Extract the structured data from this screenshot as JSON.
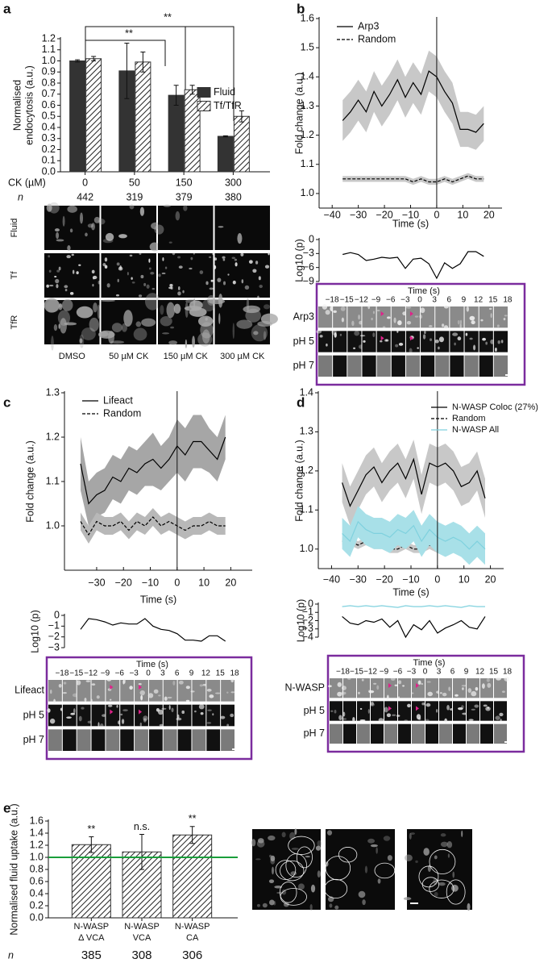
{
  "panel_labels": [
    "a",
    "b",
    "c",
    "d",
    "e"
  ],
  "chart_data": [
    {
      "type": "bar",
      "y_label": [
        "Normalised",
        "endocytosis (a.u.)"
      ],
      "x_label": "CK (µM)",
      "categories": [
        "0",
        "50",
        "150",
        "300"
      ],
      "n_label": "n",
      "n": [
        442,
        319,
        379,
        380
      ],
      "series": [
        {
          "name": "Fluid",
          "color": "#333333",
          "hatch": false,
          "values": [
            1.0,
            0.91,
            0.69,
            0.32
          ],
          "errors": [
            0.01,
            0.25,
            0.09,
            0.005
          ]
        },
        {
          "name": "Tf/TfR",
          "color": "#333333",
          "hatch": true,
          "values": [
            1.02,
            0.99,
            0.74,
            0.5
          ],
          "errors": [
            0.02,
            0.09,
            0.04,
            0.05
          ]
        }
      ],
      "ylim": [
        0,
        1.2
      ],
      "yticks": [
        {
          "value": 0,
          "label": "0.0"
        },
        0.1,
        0.2,
        0.3,
        0.4,
        0.5,
        0.6,
        0.7,
        0.8,
        0.9,
        {
          "value": 1,
          "label": "1.0"
        },
        1.1,
        1.2
      ],
      "annotations": [
        "**",
        "**"
      ],
      "legend": "center right"
    },
    {
      "type": "line",
      "y_label": "Fold change (a.u.)",
      "x_label": "Time (s)",
      "x": [
        -36,
        -33,
        -30,
        -27,
        -24,
        -21,
        -18,
        -15,
        -12,
        -9,
        -6,
        -3,
        0,
        3,
        6,
        9,
        12,
        15,
        18
      ],
      "xlim": [
        -45,
        25
      ],
      "xticks": [
        {
          "value": -40,
          "label": "−40"
        },
        {
          "value": -30,
          "label": "−30"
        },
        {
          "value": -20,
          "label": "−20"
        },
        {
          "value": -10,
          "label": "−10"
        },
        0,
        10,
        20
      ],
      "ylim": [
        0.95,
        1.6
      ],
      "yticks": [
        {
          "value": 1,
          "label": "1.0"
        },
        1.1,
        1.2,
        1.3,
        1.4,
        1.5,
        1.6
      ],
      "vline": 0,
      "legend": "upper left",
      "series": [
        {
          "name": "Arp3",
          "color": "#000000",
          "dash": false,
          "band_color": "#c8c8c8",
          "values": [
            1.25,
            1.28,
            1.32,
            1.28,
            1.35,
            1.3,
            1.34,
            1.39,
            1.33,
            1.38,
            1.34,
            1.42,
            1.4,
            1.35,
            1.31,
            1.22,
            1.22,
            1.21,
            1.24
          ],
          "band": [
            0.07,
            0.07,
            0.07,
            0.07,
            0.07,
            0.07,
            0.07,
            0.07,
            0.07,
            0.07,
            0.07,
            0.07,
            0.07,
            0.07,
            0.07,
            0.06,
            0.06,
            0.06,
            0.06
          ]
        },
        {
          "name": "Random",
          "color": "#000000",
          "dash": true,
          "band_color": "#c8c8c8",
          "values": [
            1.05,
            1.05,
            1.05,
            1.05,
            1.05,
            1.05,
            1.05,
            1.05,
            1.05,
            1.04,
            1.05,
            1.04,
            1.04,
            1.05,
            1.04,
            1.05,
            1.06,
            1.05,
            1.05
          ],
          "band": [
            0.01,
            0.01,
            0.01,
            0.01,
            0.01,
            0.01,
            0.01,
            0.01,
            0.01,
            0.01,
            0.01,
            0.01,
            0.01,
            0.01,
            0.01,
            0.01,
            0.01,
            0.01,
            0.01
          ]
        }
      ]
    },
    {
      "type": "line",
      "y_label": "Log10 (p)",
      "x": [
        -36,
        -33,
        -30,
        -27,
        -24,
        -21,
        -18,
        -15,
        -12,
        -9,
        -6,
        -3,
        0,
        3,
        6,
        9,
        12,
        15,
        18
      ],
      "xlim": [
        -45,
        25
      ],
      "ylim": [
        -9,
        0
      ],
      "yticks": [
        0,
        {
          "value": -3,
          "label": "−3"
        },
        {
          "value": -6,
          "label": "−6"
        },
        {
          "value": -9,
          "label": "−9"
        }
      ],
      "series": [
        {
          "color": "#000000",
          "values": [
            -3.2,
            -2.8,
            -3.2,
            -4.5,
            -4.2,
            -3.8,
            -4.0,
            -3.8,
            -6.2,
            -4.2,
            -4.0,
            -5.2,
            -8.3,
            -5.0,
            -6.2,
            -5.2,
            -2.6,
            -2.6,
            -3.6
          ]
        }
      ]
    },
    {
      "type": "line",
      "y_label": "Fold change (a.u.)",
      "x_label": "Time (s)",
      "x": [
        -36,
        -33,
        -30,
        -27,
        -24,
        -21,
        -18,
        -15,
        -12,
        -9,
        -6,
        -3,
        0,
        3,
        6,
        9,
        12,
        15,
        18
      ],
      "xlim": [
        -42,
        28
      ],
      "xticks": [
        {
          "value": -30,
          "label": "−30"
        },
        {
          "value": -20,
          "label": "−20"
        },
        {
          "value": -10,
          "label": "−10"
        },
        0,
        10,
        20
      ],
      "ylim": [
        0.9,
        1.3
      ],
      "yticks": [
        {
          "value": 1,
          "label": "1.0"
        },
        1.1,
        1.2,
        1.3
      ],
      "vline": 0,
      "legend": "upper left",
      "series": [
        {
          "name": "Lifeact",
          "color": "#000000",
          "dash": false,
          "band_color": "#a6a6a6",
          "values": [
            1.14,
            1.05,
            1.07,
            1.08,
            1.11,
            1.1,
            1.13,
            1.12,
            1.14,
            1.15,
            1.13,
            1.15,
            1.18,
            1.16,
            1.19,
            1.19,
            1.17,
            1.15,
            1.2
          ],
          "band": [
            0.06,
            0.05,
            0.05,
            0.05,
            0.05,
            0.05,
            0.05,
            0.05,
            0.05,
            0.06,
            0.05,
            0.05,
            0.06,
            0.06,
            0.06,
            0.06,
            0.05,
            0.05,
            0.05
          ]
        },
        {
          "name": "Random",
          "color": "#000000",
          "dash": true,
          "band_color": "#b8b8b8",
          "values": [
            1.01,
            0.98,
            1.01,
            1.0,
            1.0,
            1.01,
            0.99,
            1.01,
            1.0,
            1.02,
            1.0,
            1.01,
            1.0,
            0.99,
            1.0,
            1.0,
            1.01,
            1.0,
            1.0
          ],
          "band": [
            0.02,
            0.02,
            0.02,
            0.02,
            0.02,
            0.02,
            0.02,
            0.02,
            0.02,
            0.02,
            0.02,
            0.02,
            0.02,
            0.02,
            0.02,
            0.02,
            0.02,
            0.02,
            0.02
          ]
        }
      ]
    },
    {
      "type": "line",
      "y_label": "Log10 (p)",
      "x": [
        -36,
        -33,
        -30,
        -27,
        -24,
        -21,
        -18,
        -15,
        -12,
        -9,
        -6,
        -3,
        0,
        3,
        6,
        9,
        12,
        15,
        18
      ],
      "xlim": [
        -42,
        28
      ],
      "ylim": [
        -3,
        0
      ],
      "yticks": [
        0,
        {
          "value": -1,
          "label": "−1"
        },
        {
          "value": -2,
          "label": "−2"
        },
        {
          "value": -3,
          "label": "−3"
        }
      ],
      "series": [
        {
          "color": "#000000",
          "values": [
            -1.3,
            -0.3,
            -0.4,
            -0.6,
            -0.9,
            -0.7,
            -0.8,
            -0.8,
            -0.3,
            -1.0,
            -1.3,
            -1.4,
            -1.7,
            -2.3,
            -2.3,
            -2.4,
            -1.9,
            -1.9,
            -2.4
          ]
        }
      ]
    },
    {
      "type": "line",
      "y_label": "Fold change (a.u.)",
      "x_label": "Time (s)",
      "x": [
        -36,
        -33,
        -30,
        -27,
        -24,
        -21,
        -18,
        -15,
        -12,
        -9,
        -6,
        -3,
        0,
        3,
        6,
        9,
        12,
        15,
        18
      ],
      "xlim": [
        -45,
        25
      ],
      "xticks": [
        {
          "value": -40,
          "label": "−40"
        },
        {
          "value": -30,
          "label": "−30"
        },
        {
          "value": -20,
          "label": "−20"
        },
        {
          "value": -10,
          "label": "−10"
        },
        0,
        10,
        20
      ],
      "ylim": [
        0.95,
        1.4
      ],
      "yticks": [
        {
          "value": 1,
          "label": "1.0"
        },
        1.1,
        1.2,
        1.3,
        1.4
      ],
      "vline": 0,
      "legend": "upper right",
      "series": [
        {
          "name": "N-WASP Coloc (27%)",
          "color": "#000000",
          "dash": false,
          "band_color": "#c8c8c8",
          "values": [
            1.17,
            1.11,
            1.15,
            1.19,
            1.21,
            1.17,
            1.2,
            1.22,
            1.18,
            1.23,
            1.14,
            1.22,
            1.21,
            1.22,
            1.2,
            1.16,
            1.17,
            1.2,
            1.13
          ],
          "band": [
            0.05,
            0.05,
            0.05,
            0.05,
            0.05,
            0.05,
            0.05,
            0.05,
            0.05,
            0.05,
            0.05,
            0.05,
            0.05,
            0.05,
            0.05,
            0.05,
            0.05,
            0.05,
            0.05
          ]
        },
        {
          "name": "Random",
          "color": "#000000",
          "dash": true,
          "band_color": "#c8c8c8",
          "values": [
            1.02,
            1.02,
            1.01,
            1.02,
            1.01,
            1.01,
            1.0,
            1.0,
            1.01,
            1.0,
            1.0,
            1.01,
            1.0,
            1.0,
            1.01,
            1.0,
            1.01,
            1.0,
            1.0
          ],
          "band": [
            0.01,
            0.01,
            0.01,
            0.01,
            0.01,
            0.01,
            0.01,
            0.01,
            0.01,
            0.01,
            0.01,
            0.01,
            0.01,
            0.01,
            0.01,
            0.01,
            0.01,
            0.01,
            0.01
          ]
        },
        {
          "name": "N-WASP All",
          "color": "#7fd1de",
          "dash": false,
          "band_color": "#a8e0e8",
          "values": [
            1.04,
            1.02,
            1.07,
            1.05,
            1.04,
            1.04,
            1.03,
            1.05,
            1.04,
            1.06,
            1.02,
            1.05,
            1.03,
            1.02,
            1.03,
            1.02,
            1.0,
            1.02,
            1.0
          ],
          "band": [
            0.04,
            0.04,
            0.04,
            0.04,
            0.04,
            0.04,
            0.04,
            0.04,
            0.04,
            0.04,
            0.04,
            0.04,
            0.04,
            0.04,
            0.04,
            0.04,
            0.04,
            0.04,
            0.04
          ]
        }
      ]
    },
    {
      "type": "line",
      "y_label": "Log10 (p)",
      "x": [
        -36,
        -33,
        -30,
        -27,
        -24,
        -21,
        -18,
        -15,
        -12,
        -9,
        -6,
        -3,
        0,
        3,
        6,
        9,
        12,
        15,
        18
      ],
      "xlim": [
        -45,
        25
      ],
      "ylim": [
        -4,
        0
      ],
      "yticks": [
        0,
        {
          "value": -1,
          "label": "−1"
        },
        {
          "value": -2,
          "label": "−2"
        },
        {
          "value": -3,
          "label": "−3"
        },
        {
          "value": -4,
          "label": "−4"
        }
      ],
      "series": [
        {
          "color": "#7fd1de",
          "values": [
            -0.3,
            -0.2,
            -0.3,
            -0.2,
            -0.3,
            -0.2,
            -0.3,
            -0.4,
            -0.2,
            -0.3,
            -0.3,
            -0.2,
            -0.3,
            -0.2,
            -0.3,
            -0.4,
            -0.2,
            -0.3,
            -0.3
          ]
        },
        {
          "color": "#000000",
          "values": [
            -1.5,
            -2.3,
            -2.5,
            -2.0,
            -2.2,
            -1.8,
            -2.8,
            -2.0,
            -4.0,
            -2.5,
            -3.1,
            -2.0,
            -3.5,
            -2.9,
            -2.5,
            -2.0,
            -2.8,
            -3.0,
            -1.5
          ]
        }
      ]
    },
    {
      "type": "bar",
      "y_label": "Normalised fluid uptake (a.u.)",
      "categories": [
        [
          "N-WASP",
          "Δ VCA"
        ],
        [
          "N-WASP",
          "VCA"
        ],
        [
          "N-WASP",
          "CA"
        ]
      ],
      "n_label": "n",
      "n": [
        385,
        308,
        306
      ],
      "series": [
        {
          "color": "#333333",
          "hatch": true,
          "values": [
            1.21,
            1.09,
            1.37
          ],
          "errors": [
            0.13,
            0.29,
            0.14
          ]
        }
      ],
      "ylim": [
        0,
        1.6
      ],
      "yticks": [
        {
          "value": 0,
          "label": "0.0"
        },
        0.2,
        0.4,
        0.6,
        0.8,
        {
          "value": 1,
          "label": "1.0"
        },
        1.2,
        1.4,
        1.6
      ],
      "reference_line": {
        "value": 1,
        "color": "#1a9e3b"
      },
      "annotations": [
        "**",
        "n.s.",
        "**"
      ]
    }
  ],
  "micrographs": {
    "row_labels": [
      "Fluid",
      "Tf",
      "TfR"
    ],
    "column_labels": [
      "DMSO",
      "50 µM CK",
      "150 µM CK",
      "300 µM CK"
    ]
  },
  "strips": [
    {
      "title": "Time (s)",
      "times": [
        "−18",
        "−15",
        "−12",
        "−9",
        "−6",
        "−3",
        "0",
        "3",
        "6",
        "9",
        "12",
        "15",
        "18"
      ],
      "rows": [
        "Arp3",
        "pH 5",
        "pH 7"
      ]
    },
    {
      "title": "Time (s)",
      "times": [
        "−18",
        "−15",
        "−12",
        "−9",
        "−6",
        "−3",
        "0",
        "3",
        "6",
        "9",
        "12",
        "15",
        "18"
      ],
      "rows": [
        "Lifeact",
        "pH 5",
        "pH 7"
      ]
    },
    {
      "title": "Time (s)",
      "times": [
        "−18",
        "−15",
        "−12",
        "−9",
        "−6",
        "−3",
        "0",
        "3",
        "6",
        "9",
        "12",
        "15",
        "18"
      ],
      "rows": [
        "N-WASP",
        "pH 5",
        "pH 7"
      ]
    }
  ]
}
